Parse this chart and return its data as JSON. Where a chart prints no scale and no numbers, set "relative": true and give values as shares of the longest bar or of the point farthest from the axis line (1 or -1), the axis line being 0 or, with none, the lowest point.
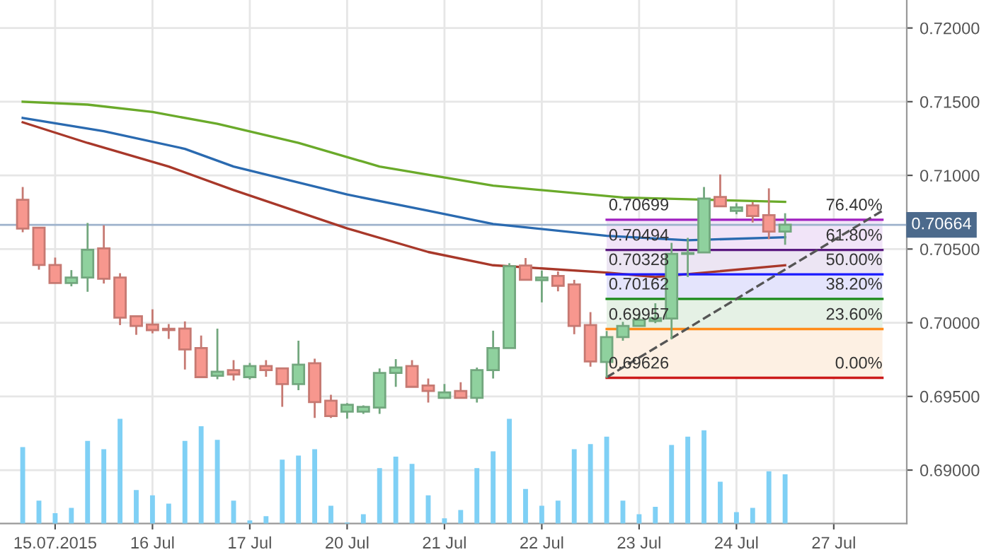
{
  "chart_data": [
    {
      "type": "candlestick",
      "categories": [
        null,
        null,
        "15.07.2015",
        null,
        null,
        null,
        null,
        null,
        "16 Jul",
        null,
        null,
        null,
        null,
        null,
        "17 Jul",
        null,
        null,
        null,
        null,
        null,
        "20 Jul",
        null,
        null,
        null,
        null,
        null,
        "21 Jul",
        null,
        null,
        null,
        null,
        null,
        "22 Jul",
        null,
        null,
        null,
        null,
        null,
        "23 Jul",
        null,
        null,
        null,
        null,
        null,
        "24 Jul",
        null,
        null,
        null,
        null,
        null,
        "27 Jul",
        null,
        null,
        null
      ],
      "ohlc": [
        [
          0.70834,
          0.70921,
          0.70614,
          0.70639
        ],
        [
          0.70645,
          0.70645,
          0.7036,
          0.70392
        ],
        [
          0.70392,
          0.70442,
          0.7027,
          0.7027
        ],
        [
          0.7027,
          0.70357,
          0.70247,
          0.70307
        ],
        [
          0.70307,
          0.70677,
          0.7021,
          0.70495
        ],
        [
          0.70505,
          0.70661,
          0.70266,
          0.70298
        ],
        [
          0.70307,
          0.70336,
          0.69984,
          0.70035
        ],
        [
          0.70044,
          0.70044,
          0.69918,
          0.69978
        ],
        [
          0.69988,
          0.70091,
          0.69928,
          0.6995
        ],
        [
          0.69959,
          0.69991,
          0.6989,
          0.6995
        ],
        [
          0.6996,
          0.70009,
          0.69683,
          0.69819
        ],
        [
          0.69828,
          0.69913,
          0.69631,
          0.69631
        ],
        [
          0.6964,
          0.6996,
          0.69617,
          0.69668
        ],
        [
          0.69678,
          0.69746,
          0.69608,
          0.69649
        ],
        [
          0.69631,
          0.69727,
          0.69615,
          0.69706
        ],
        [
          0.69706,
          0.69746,
          0.69633,
          0.69678
        ],
        [
          0.6969,
          0.6969,
          0.69429,
          0.69584
        ],
        [
          0.69584,
          0.69878,
          0.69542,
          0.69715
        ],
        [
          0.69725,
          0.69756,
          0.69354,
          0.69461
        ],
        [
          0.69471,
          0.69511,
          0.69354,
          0.69367
        ],
        [
          0.69396,
          0.69455,
          0.69349,
          0.69443
        ],
        [
          0.69396,
          0.69439,
          0.69382,
          0.69429
        ],
        [
          0.69424,
          0.6969,
          0.69382,
          0.69659
        ],
        [
          0.69659,
          0.69753,
          0.69565,
          0.69696
        ],
        [
          0.69706,
          0.69746,
          0.69565,
          0.69565
        ],
        [
          0.69574,
          0.69621,
          0.69458,
          0.69537
        ],
        [
          0.6949,
          0.69584,
          0.6949,
          0.69527
        ],
        [
          0.69537,
          0.69596,
          0.6949,
          0.6949
        ],
        [
          0.6949,
          0.69696,
          0.69458,
          0.69678
        ],
        [
          0.69678,
          0.69946,
          0.69621,
          0.69828
        ],
        [
          0.69828,
          0.70404,
          0.69828,
          0.70383
        ],
        [
          0.70388,
          0.70439,
          0.70291,
          0.70291
        ],
        [
          0.70289,
          0.70354,
          0.70138,
          0.70307
        ],
        [
          0.70317,
          0.70348,
          0.70213,
          0.70251
        ],
        [
          0.7026,
          0.70291,
          0.69922,
          0.69978
        ],
        [
          0.69984,
          0.70072,
          0.69702,
          0.69737
        ],
        [
          0.69734,
          0.69944,
          0.69626,
          0.69903
        ],
        [
          0.69903,
          0.70006,
          0.69878,
          0.69978
        ],
        [
          0.69978,
          0.70059,
          0.69978,
          0.70019
        ],
        [
          0.70012,
          0.70132,
          0.69997,
          0.70031
        ],
        [
          0.70028,
          0.70542,
          0.69887,
          0.70467
        ],
        [
          0.70467,
          0.70576,
          0.7031,
          0.70473
        ],
        [
          0.70477,
          0.70921,
          0.70477,
          0.70843
        ],
        [
          0.70853,
          0.71006,
          0.7079,
          0.7079
        ],
        [
          0.70759,
          0.70811,
          0.70736,
          0.70783
        ],
        [
          0.70796,
          0.70818,
          0.7068,
          0.70724
        ],
        [
          0.7073,
          0.70912,
          0.70567,
          0.70618
        ],
        [
          0.70618,
          0.70743,
          0.70529,
          0.70665
        ],
        null,
        null,
        null,
        null,
        null,
        null
      ],
      "colors": [
        "#f7978e",
        "#f7978e",
        "#f7978e",
        "#8fd19e",
        "#8fd19e",
        "#f7978e",
        "#f7978e",
        "#f7978e",
        "#f7978e",
        "#f7978e",
        "#f7978e",
        "#f7978e",
        "#8fd19e",
        "#f7978e",
        "#8fd19e",
        "#f7978e",
        "#f7978e",
        "#8fd19e",
        "#f7978e",
        "#f7978e",
        "#8fd19e",
        "#8fd19e",
        "#8fd19e",
        "#8fd19e",
        "#f7978e",
        "#f7978e",
        "#8fd19e",
        "#f7978e",
        "#8fd19e",
        "#8fd19e",
        "#8fd19e",
        "#f7978e",
        "#8fd19e",
        "#f7978e",
        "#f7978e",
        "#f7978e",
        "#8fd19e",
        "#8fd19e",
        "#8fd19e",
        "#8fd19e",
        "#8fd19e",
        "#8fd19e",
        "#8fd19e",
        "#f7978e",
        "#8fd19e",
        "#f7978e",
        "#f7978e",
        "#8fd19e",
        null,
        null,
        null,
        null,
        null,
        null
      ],
      "series": [
        {
          "type": "line",
          "color": "#6aaa2a",
          "values": [
            0.715,
            null,
            null,
            null,
            0.7148,
            null,
            null,
            null,
            0.7143,
            null,
            null,
            null,
            0.7135,
            null,
            null,
            null,
            null,
            0.7122,
            null,
            null,
            null,
            null,
            0.7106,
            null,
            null,
            null,
            null,
            null,
            null,
            0.7093,
            null,
            null,
            null,
            null,
            null,
            null,
            null,
            0.7085,
            null,
            null,
            null,
            null,
            null,
            null,
            null,
            null,
            null,
            0.7082,
            null,
            null,
            null,
            null,
            null,
            null
          ]
        },
        {
          "type": "line",
          "color": "#2a6ab0",
          "values": [
            0.7139,
            null,
            null,
            null,
            null,
            0.713,
            null,
            null,
            null,
            null,
            0.7118,
            null,
            null,
            0.7106,
            null,
            null,
            null,
            null,
            null,
            null,
            0.7087,
            null,
            null,
            null,
            null,
            0.7076,
            null,
            null,
            null,
            0.7067,
            null,
            null,
            null,
            null,
            null,
            null,
            0.7059,
            null,
            null,
            null,
            null,
            0.7056,
            null,
            null,
            null,
            null,
            null,
            0.7058,
            null,
            null,
            null,
            null,
            null,
            null
          ]
        },
        {
          "type": "line",
          "color": "#a8382a",
          "values": [
            0.7136,
            null,
            null,
            null,
            0.7122,
            null,
            null,
            null,
            null,
            0.7106,
            null,
            null,
            null,
            0.709,
            null,
            null,
            null,
            null,
            null,
            null,
            0.7064,
            null,
            null,
            null,
            null,
            0.7048,
            null,
            null,
            null,
            0.7039,
            null,
            null,
            null,
            null,
            null,
            null,
            0.7034,
            null,
            null,
            0.7031,
            null,
            null,
            null,
            null,
            null,
            null,
            null,
            0.7039,
            null,
            null,
            null,
            null,
            null,
            null
          ]
        },
        {
          "type": "line",
          "color": "#a020c0",
          "values": [
            null,
            null,
            null,
            null,
            null,
            null,
            null,
            null,
            null,
            null,
            null,
            null,
            null,
            null,
            null,
            null,
            null,
            null,
            null,
            null,
            null,
            null,
            null,
            null,
            null,
            null,
            null,
            null,
            null,
            null,
            null,
            null,
            null,
            null,
            null,
            null,
            0.70699,
            null,
            null,
            null,
            null,
            null,
            null,
            null,
            null,
            null,
            null,
            null,
            null,
            null,
            null,
            null,
            null,
            0.70699
          ],
          "value_labels": [
            null,
            null,
            null,
            null,
            null,
            null,
            null,
            null,
            null,
            null,
            null,
            null,
            null,
            null,
            null,
            null,
            null,
            null,
            null,
            null,
            null,
            null,
            null,
            null,
            null,
            null,
            null,
            null,
            null,
            null,
            null,
            null,
            null,
            null,
            null,
            null,
            "0.70699",
            null,
            null,
            null,
            null,
            null,
            null,
            null,
            null,
            null,
            null,
            null,
            null,
            null,
            null,
            null,
            null,
            null
          ]
        },
        {
          "type": "line",
          "color": "#5a1a80",
          "values": [
            null,
            null,
            null,
            null,
            null,
            null,
            null,
            null,
            null,
            null,
            null,
            null,
            null,
            null,
            null,
            null,
            null,
            null,
            null,
            null,
            null,
            null,
            null,
            null,
            null,
            null,
            null,
            null,
            null,
            null,
            null,
            null,
            null,
            null,
            null,
            null,
            0.70494,
            null,
            null,
            null,
            null,
            null,
            null,
            null,
            null,
            null,
            null,
            null,
            null,
            null,
            null,
            null,
            null,
            0.70494
          ],
          "value_labels": [
            null,
            null,
            null,
            null,
            null,
            null,
            null,
            null,
            null,
            null,
            null,
            null,
            null,
            null,
            null,
            null,
            null,
            null,
            null,
            null,
            null,
            null,
            null,
            null,
            null,
            null,
            null,
            null,
            null,
            null,
            null,
            null,
            null,
            null,
            null,
            null,
            "0.70494",
            null,
            null,
            null,
            null,
            null,
            null,
            null,
            null,
            null,
            null,
            null,
            null,
            null,
            null,
            null,
            null,
            null
          ]
        },
        {
          "type": "line",
          "color": "#1a1aff",
          "values": [
            null,
            null,
            null,
            null,
            null,
            null,
            null,
            null,
            null,
            null,
            null,
            null,
            null,
            null,
            null,
            null,
            null,
            null,
            null,
            null,
            null,
            null,
            null,
            null,
            null,
            null,
            null,
            null,
            null,
            null,
            null,
            null,
            null,
            null,
            null,
            null,
            0.70328,
            null,
            null,
            null,
            null,
            null,
            null,
            null,
            null,
            null,
            null,
            null,
            null,
            null,
            null,
            null,
            null,
            0.70328
          ],
          "value_labels": [
            null,
            null,
            null,
            null,
            null,
            null,
            null,
            null,
            null,
            null,
            null,
            null,
            null,
            null,
            null,
            null,
            null,
            null,
            null,
            null,
            null,
            null,
            null,
            null,
            null,
            null,
            null,
            null,
            null,
            null,
            null,
            null,
            null,
            null,
            null,
            null,
            "0.70328",
            null,
            null,
            null,
            null,
            null,
            null,
            null,
            null,
            null,
            null,
            null,
            null,
            null,
            null,
            null,
            null,
            null
          ]
        },
        {
          "type": "line",
          "color": "#1a8a1a",
          "values": [
            null,
            null,
            null,
            null,
            null,
            null,
            null,
            null,
            null,
            null,
            null,
            null,
            null,
            null,
            null,
            null,
            null,
            null,
            null,
            null,
            null,
            null,
            null,
            null,
            null,
            null,
            null,
            null,
            null,
            null,
            null,
            null,
            null,
            null,
            null,
            null,
            0.70162,
            null,
            null,
            null,
            null,
            null,
            null,
            null,
            null,
            null,
            null,
            null,
            null,
            null,
            null,
            null,
            null,
            0.70162
          ],
          "value_labels": [
            null,
            null,
            null,
            null,
            null,
            null,
            null,
            null,
            null,
            null,
            null,
            null,
            null,
            null,
            null,
            null,
            null,
            null,
            null,
            null,
            null,
            null,
            null,
            null,
            null,
            null,
            null,
            null,
            null,
            null,
            null,
            null,
            null,
            null,
            null,
            null,
            "0.70162",
            null,
            null,
            null,
            null,
            null,
            null,
            null,
            null,
            null,
            null,
            null,
            null,
            null,
            null,
            null,
            null,
            null
          ]
        },
        {
          "type": "line",
          "color": "#ff8c1a",
          "values": [
            null,
            null,
            null,
            null,
            null,
            null,
            null,
            null,
            null,
            null,
            null,
            null,
            null,
            null,
            null,
            null,
            null,
            null,
            null,
            null,
            null,
            null,
            null,
            null,
            null,
            null,
            null,
            null,
            null,
            null,
            null,
            null,
            null,
            null,
            null,
            null,
            0.69957,
            null,
            null,
            null,
            null,
            null,
            null,
            null,
            null,
            null,
            null,
            null,
            null,
            null,
            null,
            null,
            null,
            0.69957
          ],
          "value_labels": [
            null,
            null,
            null,
            null,
            null,
            null,
            null,
            null,
            null,
            null,
            null,
            null,
            null,
            null,
            null,
            null,
            null,
            null,
            null,
            null,
            null,
            null,
            null,
            null,
            null,
            null,
            null,
            null,
            null,
            null,
            null,
            null,
            null,
            null,
            null,
            null,
            "0.69957",
            null,
            null,
            null,
            null,
            null,
            null,
            null,
            null,
            null,
            null,
            null,
            null,
            null,
            null,
            null,
            null,
            null
          ]
        },
        {
          "type": "line",
          "color": "#cc1a1a",
          "values": [
            null,
            null,
            null,
            null,
            null,
            null,
            null,
            null,
            null,
            null,
            null,
            null,
            null,
            null,
            null,
            null,
            null,
            null,
            null,
            null,
            null,
            null,
            null,
            null,
            null,
            null,
            null,
            null,
            null,
            null,
            null,
            null,
            null,
            null,
            null,
            null,
            0.69626,
            null,
            null,
            null,
            null,
            null,
            null,
            null,
            null,
            null,
            null,
            null,
            null,
            null,
            null,
            null,
            null,
            0.69626
          ],
          "value_labels": [
            null,
            null,
            null,
            null,
            null,
            null,
            null,
            null,
            null,
            null,
            null,
            null,
            null,
            null,
            null,
            null,
            null,
            null,
            null,
            null,
            null,
            null,
            null,
            null,
            null,
            null,
            null,
            null,
            null,
            null,
            null,
            null,
            null,
            null,
            null,
            null,
            "0.69626",
            null,
            null,
            null,
            null,
            null,
            null,
            null,
            null,
            null,
            null,
            null,
            null,
            null,
            null,
            null,
            null,
            null
          ]
        },
        {
          "type": "line",
          "color": "#555555",
          "line_style": "dashed",
          "values": [
            null,
            null,
            null,
            null,
            null,
            null,
            null,
            null,
            null,
            null,
            null,
            null,
            null,
            null,
            null,
            null,
            null,
            null,
            null,
            null,
            null,
            null,
            null,
            null,
            null,
            null,
            null,
            null,
            null,
            null,
            null,
            null,
            null,
            null,
            null,
            null,
            0.6963,
            null,
            null,
            null,
            null,
            null,
            null,
            null,
            null,
            null,
            null,
            null,
            null,
            null,
            null,
            null,
            null,
            0.7076
          ]
        }
      ],
      "annotations": [
        {
          "text": "76.40%",
          "y": 0.70699
        },
        {
          "text": "61.80%",
          "y": 0.70494
        },
        {
          "text": "50.00%",
          "y": 0.70328
        },
        {
          "text": "38.20%",
          "y": 0.70162
        },
        {
          "text": "23.60%",
          "y": 0.69957
        },
        {
          "text": "0.00%",
          "y": 0.69626
        }
      ],
      "bands": [
        {
          "axis": "y",
          "from": 0.70494,
          "to": 0.70699,
          "color": "#f1e4f8"
        },
        {
          "axis": "y",
          "from": 0.70328,
          "to": 0.70494,
          "color": "#ece5f3"
        },
        {
          "axis": "y",
          "from": 0.70162,
          "to": 0.70328,
          "color": "#e4e4fc"
        },
        {
          "axis": "y",
          "from": 0.69957,
          "to": 0.70162,
          "color": "#e5f1e5"
        },
        {
          "axis": "y",
          "from": 0.69626,
          "to": 0.69957,
          "color": "#fdf0e3"
        }
      ],
      "ref_lines": [
        {
          "axis": "y",
          "value": 0.70664,
          "label": "0.70664",
          "color": "#9db2cc"
        }
      ],
      "ylim": [
        0.68637,
        0.7219
      ],
      "yticks": [
        {
          "value": 0.69,
          "label": "0.69000"
        },
        {
          "value": 0.695,
          "label": "0.69500"
        },
        {
          "value": 0.7,
          "label": "0.70000"
        },
        {
          "value": 0.705,
          "label": "0.70500"
        },
        {
          "value": 0.71,
          "label": "0.71000"
        },
        {
          "value": 0.715,
          "label": "0.71500"
        },
        {
          "value": 0.72,
          "label": "0.72000"
        }
      ],
      "grid": true
    },
    {
      "type": "bar",
      "relative": true,
      "tick_labels": false,
      "categories": [
        null,
        null,
        null,
        null,
        null,
        null,
        null,
        null,
        null,
        null,
        null,
        null,
        null,
        null,
        null,
        null,
        null,
        null,
        null,
        null,
        null,
        null,
        null,
        null,
        null,
        null,
        null,
        null,
        null,
        null,
        null,
        null,
        null,
        null,
        null,
        null,
        null,
        null,
        null,
        null,
        null,
        null,
        null,
        null,
        null,
        null,
        null,
        null,
        null,
        null,
        null,
        null,
        null,
        null
      ],
      "series": [
        {
          "color": "#7fd0f5",
          "values": [
            0.73,
            0.22,
            0.1,
            0.15,
            0.79,
            0.71,
            1,
            0.32,
            0.27,
            0.19,
            0.79,
            0.93,
            0.8,
            0.22,
            0.03,
            0.07,
            0.61,
            0.65,
            0.71,
            0.17,
            0.01,
            0.09,
            0.53,
            0.64,
            0.57,
            0.27,
            0.05,
            0.13,
            0.53,
            0.69,
            1,
            0.33,
            0.17,
            0.22,
            0.71,
            0.76,
            0.83,
            0.22,
            0.09,
            0.16,
            0.75,
            0.83,
            0.89,
            0.4,
            0.11,
            0.15,
            0.5,
            0.47,
            null,
            null,
            null,
            null,
            null,
            null
          ]
        }
      ]
    }
  ]
}
